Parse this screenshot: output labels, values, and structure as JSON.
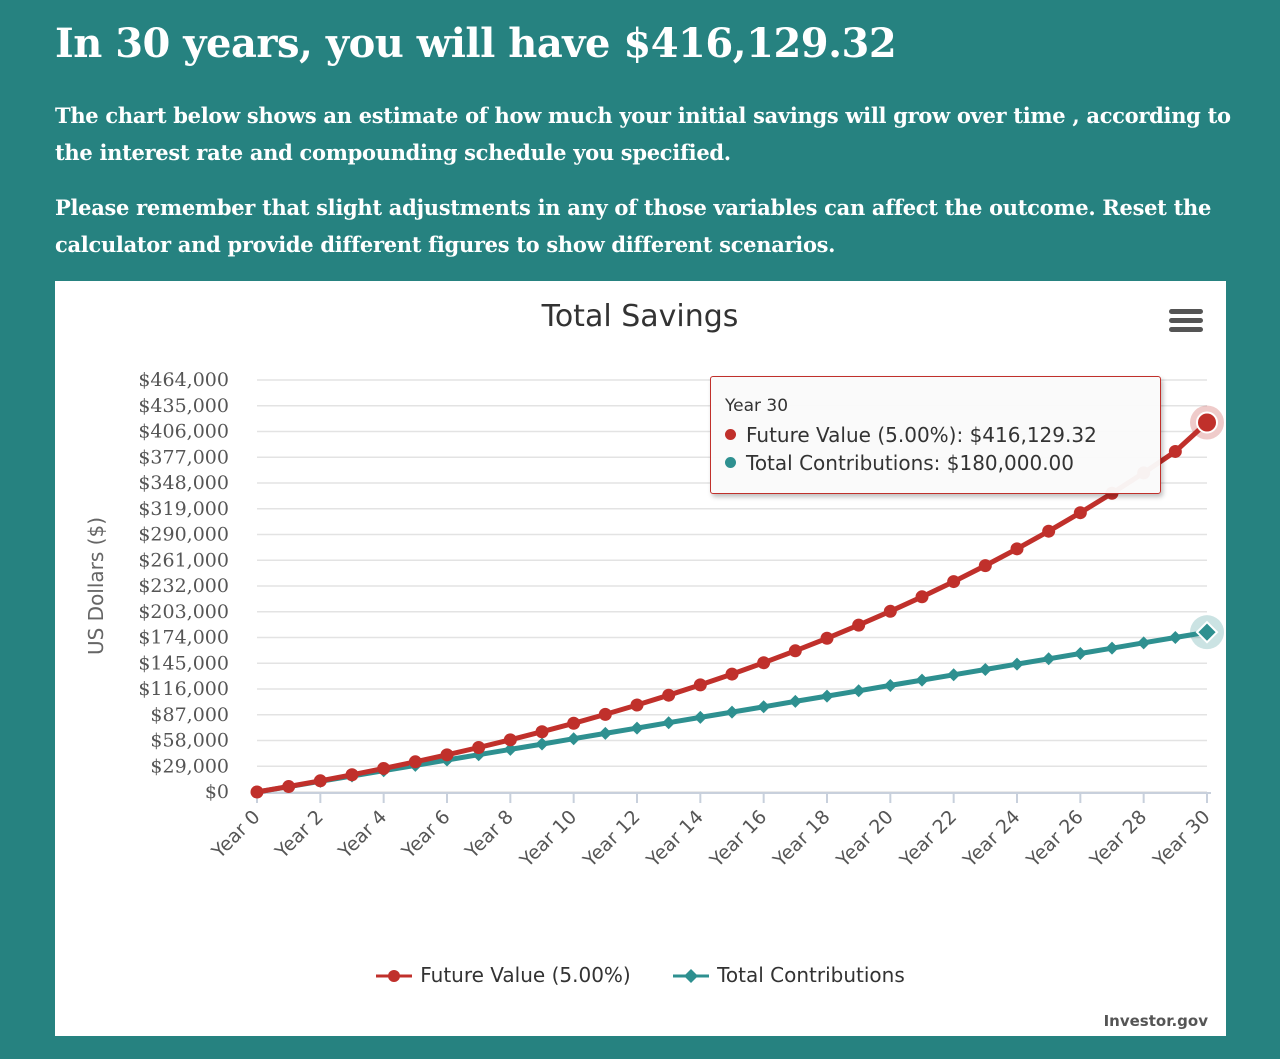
{
  "header": {
    "headline": "In 30 years, you will have $416,129.32",
    "paragraph1": "The chart below shows an estimate of how much your initial savings will grow over time , according to the interest rate and compounding schedule you specified.",
    "paragraph2": "Please remember that slight adjustments in any of those variables can affect the outcome. Reset the calculator and provide different figures to show different scenarios."
  },
  "credit": "Investor.gov",
  "tooltip": {
    "heading": "Year 30",
    "line1": "Future Value (5.00%): $416,129.32",
    "line2": "Total Contributions: $180,000.00"
  },
  "colors": {
    "future": "#c0302b",
    "contrib": "#2e9090"
  },
  "chart_data": {
    "type": "line",
    "title": "Total Savings",
    "ylabel": "US Dollars ($)",
    "ylim": [
      0,
      464000
    ],
    "yticks": [
      0,
      29000,
      58000,
      87000,
      116000,
      145000,
      174000,
      203000,
      232000,
      261000,
      290000,
      319000,
      348000,
      377000,
      406000,
      435000,
      464000
    ],
    "ytick_labels": [
      "$0",
      "$29,000",
      "$58,000",
      "$87,000",
      "$116,000",
      "$145,000",
      "$174,000",
      "$203,000",
      "$232,000",
      "$261,000",
      "$290,000",
      "$319,000",
      "$348,000",
      "$377,000",
      "$406,000",
      "$435,000",
      "$464,000"
    ],
    "x": [
      0,
      1,
      2,
      3,
      4,
      5,
      6,
      7,
      8,
      9,
      10,
      11,
      12,
      13,
      14,
      15,
      16,
      17,
      18,
      19,
      20,
      21,
      22,
      23,
      24,
      25,
      26,
      27,
      28,
      29,
      30
    ],
    "xtick_labels": [
      "Year 0",
      "Year 2",
      "Year 4",
      "Year 6",
      "Year 8",
      "Year 10",
      "Year 12",
      "Year 14",
      "Year 16",
      "Year 18",
      "Year 20",
      "Year 22",
      "Year 24",
      "Year 26",
      "Year 28",
      "Year 30"
    ],
    "series": [
      {
        "name": "Future Value (5.00%)",
        "values": [
          0,
          6150,
          12610,
          19400,
          26520,
          34000,
          41860,
          50110,
          58770,
          67860,
          77410,
          87430,
          97960,
          109020,
          120620,
          132800,
          145600,
          159030,
          173140,
          187950,
          203500,
          219830,
          236970,
          254970,
          273870,
          293720,
          314560,
          336440,
          359410,
          383530,
          416129.32
        ]
      },
      {
        "name": "Total Contributions",
        "values": [
          0,
          6000,
          12000,
          18000,
          24000,
          30000,
          36000,
          42000,
          48000,
          54000,
          60000,
          66000,
          72000,
          78000,
          84000,
          90000,
          96000,
          102000,
          108000,
          114000,
          120000,
          126000,
          132000,
          138000,
          144000,
          150000,
          156000,
          162000,
          168000,
          174000,
          180000
        ]
      }
    ],
    "legend_position": "bottom-center",
    "grid": true
  }
}
